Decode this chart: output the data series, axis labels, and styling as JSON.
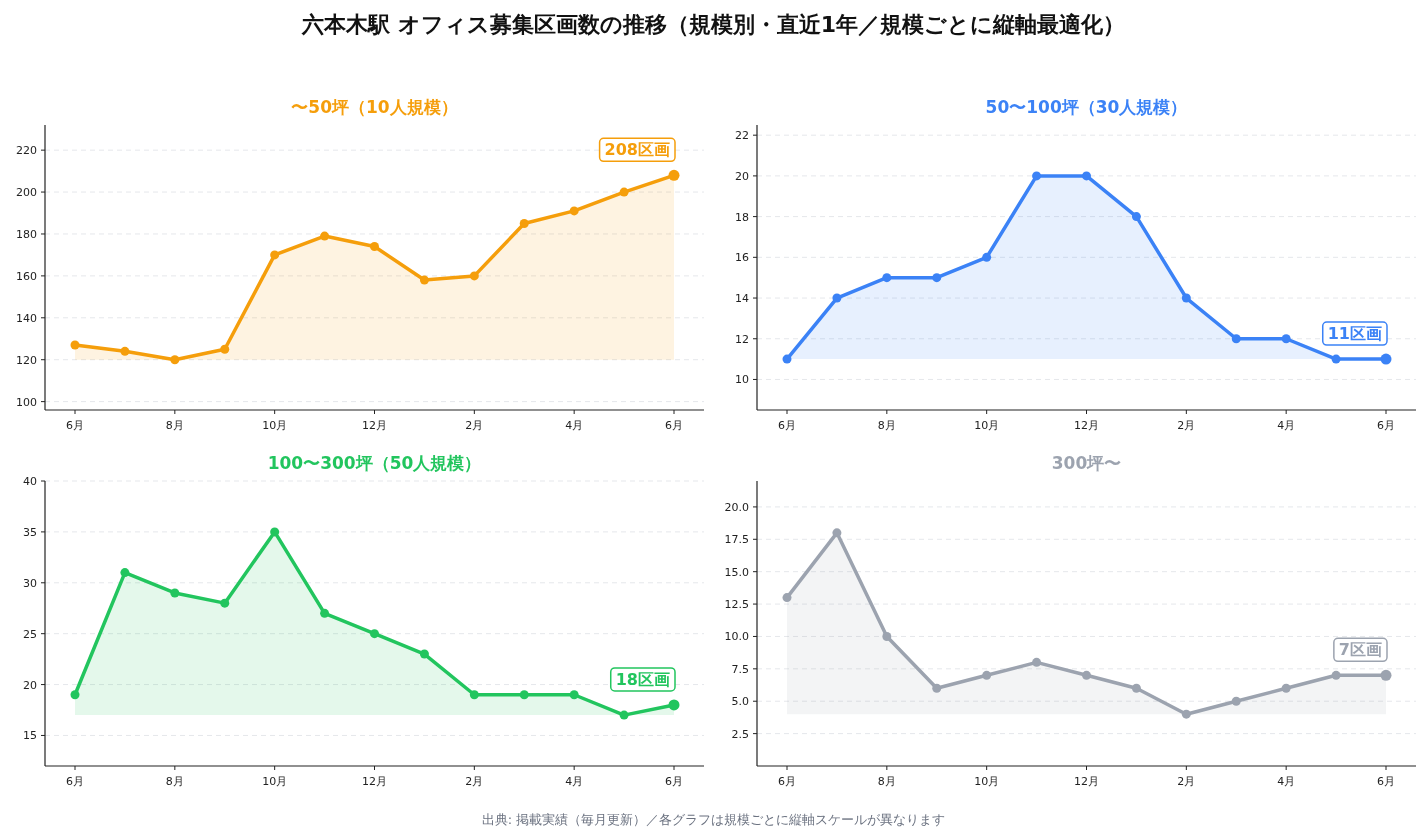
{
  "chart_data": [
    {
      "type": "other",
      "title": "六本木駅 オフィス募集区画数の推移（規模別・直近1年／規模ごとに縦軸最適化）",
      "annotations": [
        "出典: 掲載実績（毎月更新）／各グラフは規模ごとに縦軸スケールが異なります"
      ]
    },
    {
      "type": "area",
      "title": "〜50坪（10人規模）",
      "categories": [
        "6月",
        null,
        "8月",
        null,
        "10月",
        null,
        "12月",
        null,
        "2月",
        null,
        "4月",
        null,
        "6月"
      ],
      "series": [
        {
          "color": "#f59e0b",
          "values": [
            127,
            124,
            120,
            125,
            170,
            179,
            174,
            158,
            160,
            185,
            191,
            200,
            208
          ]
        }
      ],
      "ylim": [
        96,
        232
      ],
      "yticks": [
        100,
        120,
        140,
        160,
        180,
        200,
        220
      ],
      "grid": "y",
      "marker": "circle",
      "line_style": "solid",
      "annotations": [
        "208区画"
      ]
    },
    {
      "type": "area",
      "title": "50〜100坪（30人規模）",
      "categories": [
        "6月",
        null,
        "8月",
        null,
        "10月",
        null,
        "12月",
        null,
        "2月",
        null,
        "4月",
        null,
        "6月"
      ],
      "series": [
        {
          "color": "#3b82f6",
          "values": [
            11,
            14,
            15,
            15,
            16,
            20,
            20,
            18,
            14,
            12,
            12,
            11,
            11
          ]
        }
      ],
      "ylim": [
        8.5,
        22.5
      ],
      "yticks": [
        10,
        12,
        14,
        16,
        18,
        20,
        22
      ],
      "grid": "y",
      "marker": "circle",
      "line_style": "solid",
      "annotations": [
        "11区画"
      ]
    },
    {
      "type": "area",
      "title": "100〜300坪（50人規模）",
      "categories": [
        "6月",
        null,
        "8月",
        null,
        "10月",
        null,
        "12月",
        null,
        "2月",
        null,
        "4月",
        null,
        "6月"
      ],
      "series": [
        {
          "color": "#22c55e",
          "values": [
            19,
            31,
            29,
            28,
            35,
            27,
            25,
            23,
            19,
            19,
            19,
            17,
            18
          ]
        }
      ],
      "ylim": [
        12,
        40
      ],
      "yticks": [
        15,
        20,
        25,
        30,
        35,
        40
      ],
      "grid": "y",
      "marker": "circle",
      "line_style": "solid",
      "annotations": [
        "18区画"
      ]
    },
    {
      "type": "area",
      "title": "300坪〜",
      "categories": [
        "6月",
        null,
        "8月",
        null,
        "10月",
        null,
        "12月",
        null,
        "2月",
        null,
        "4月",
        null,
        "6月"
      ],
      "series": [
        {
          "color": "#9ca3af",
          "values": [
            13,
            18,
            10,
            6,
            7,
            8,
            7,
            6,
            4,
            5,
            6,
            7,
            7
          ]
        }
      ],
      "ylim": [
        0,
        22
      ],
      "yticks": [
        {
          "value": 2.5,
          "label": "2.5"
        },
        {
          "value": 5,
          "label": "5.0"
        },
        {
          "value": 7.5,
          "label": "7.5"
        },
        {
          "value": 10,
          "label": "10.0"
        },
        {
          "value": 12.5,
          "label": "12.5"
        },
        {
          "value": 15,
          "label": "15.0"
        },
        {
          "value": 17.5,
          "label": "17.5"
        },
        {
          "value": 20,
          "label": "20.0"
        }
      ],
      "grid": "y",
      "marker": "circle",
      "line_style": "solid",
      "annotations": [
        "7区画"
      ]
    }
  ]
}
